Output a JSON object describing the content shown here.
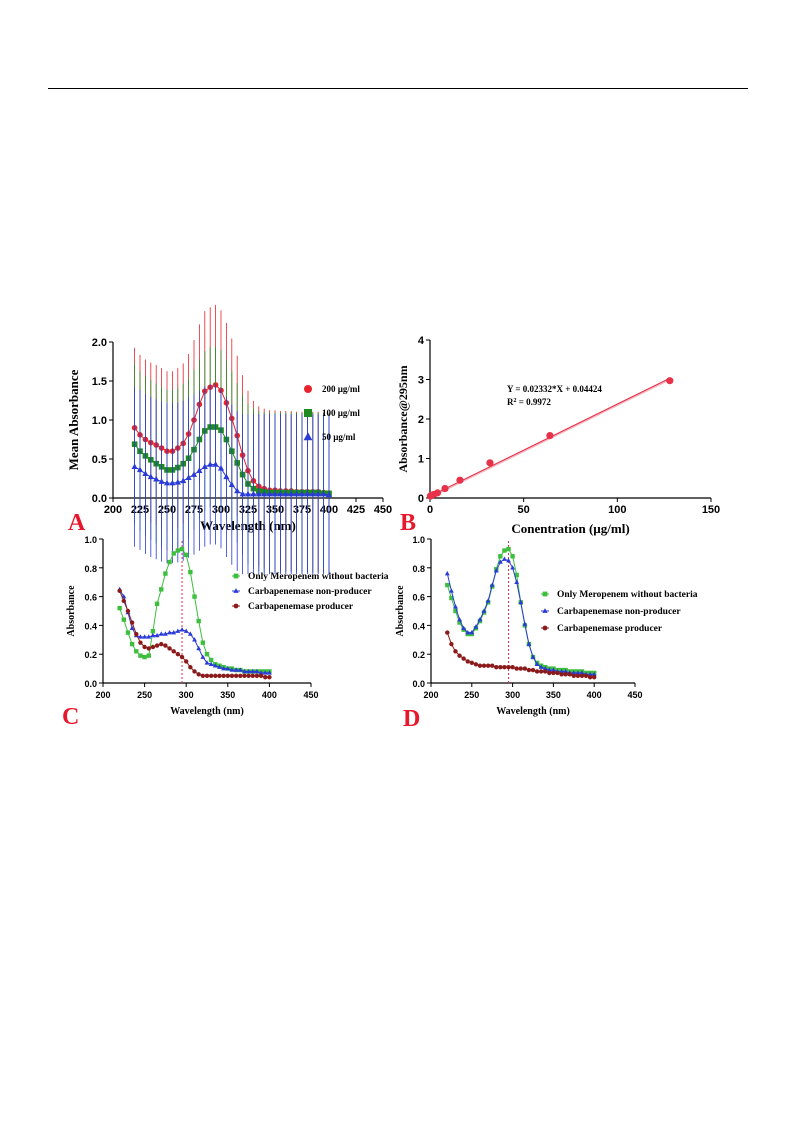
{
  "chart_data": [
    {
      "panel": "A",
      "type": "line",
      "xlabel": "Wavelength (nm)",
      "ylabel": "Mean Absorbance",
      "xlim": [
        200,
        450
      ],
      "ylim": [
        0,
        2.0
      ],
      "xticks": [
        "200",
        "225",
        "250",
        "275",
        "300",
        "325",
        "350",
        "375",
        "400",
        "425",
        "450"
      ],
      "yticks": [
        "0.0",
        "0.5",
        "1.0",
        "1.5",
        "2.0"
      ],
      "legend_position": "right",
      "error_bars": true,
      "series": [
        {
          "name": "200 µg/ml",
          "color": "#e8232b",
          "marker": "circle",
          "x": [
            220,
            225,
            230,
            235,
            240,
            245,
            250,
            255,
            260,
            265,
            270,
            275,
            280,
            285,
            290,
            295,
            300,
            305,
            310,
            315,
            320,
            325,
            330,
            335,
            340,
            345,
            350,
            355,
            360,
            365,
            370,
            375,
            380,
            385,
            390,
            395,
            400
          ],
          "y": [
            0.9,
            0.81,
            0.75,
            0.71,
            0.68,
            0.64,
            0.6,
            0.6,
            0.64,
            0.7,
            0.82,
            1.0,
            1.2,
            1.37,
            1.42,
            1.45,
            1.38,
            1.22,
            1.02,
            0.8,
            0.55,
            0.35,
            0.22,
            0.15,
            0.12,
            0.1,
            0.1,
            0.09,
            0.09,
            0.09,
            0.08,
            0.08,
            0.08,
            0.08,
            0.08,
            0.07,
            0.06
          ]
        },
        {
          "name": "100 µg/ml",
          "color": "#1f8a1f",
          "marker": "square",
          "x": [
            220,
            225,
            230,
            235,
            240,
            245,
            250,
            255,
            260,
            265,
            270,
            275,
            280,
            285,
            290,
            295,
            300,
            305,
            310,
            315,
            320,
            325,
            330,
            335,
            340,
            345,
            350,
            355,
            360,
            365,
            370,
            375,
            380,
            385,
            390,
            395,
            400
          ],
          "y": [
            0.69,
            0.6,
            0.54,
            0.49,
            0.44,
            0.4,
            0.36,
            0.36,
            0.39,
            0.44,
            0.51,
            0.62,
            0.75,
            0.86,
            0.91,
            0.91,
            0.87,
            0.75,
            0.6,
            0.45,
            0.3,
            0.18,
            0.12,
            0.09,
            0.08,
            0.07,
            0.07,
            0.07,
            0.07,
            0.07,
            0.07,
            0.07,
            0.07,
            0.07,
            0.07,
            0.06,
            0.06
          ]
        },
        {
          "name": "50 µg/ml",
          "color": "#2a3bd8",
          "marker": "triangle",
          "x": [
            220,
            225,
            230,
            235,
            240,
            245,
            250,
            255,
            260,
            265,
            270,
            275,
            280,
            285,
            290,
            295,
            300,
            305,
            310,
            315,
            320,
            325,
            330,
            335,
            340,
            345,
            350,
            355,
            360,
            365,
            370,
            375,
            380,
            385,
            390,
            395,
            400
          ],
          "y": [
            0.4,
            0.36,
            0.31,
            0.27,
            0.24,
            0.21,
            0.19,
            0.19,
            0.2,
            0.22,
            0.26,
            0.3,
            0.35,
            0.4,
            0.43,
            0.43,
            0.38,
            0.27,
            0.17,
            0.09,
            0.05,
            0.05,
            0.05,
            0.05,
            0.05,
            0.05,
            0.05,
            0.05,
            0.05,
            0.05,
            0.05,
            0.05,
            0.05,
            0.05,
            0.05,
            0.05,
            0.04
          ]
        }
      ]
    },
    {
      "panel": "B",
      "type": "scatter",
      "xlabel": "Conentration (µg/ml)",
      "ylabel": "Absorbance@295nm",
      "xlim": [
        0,
        150
      ],
      "ylim": [
        0,
        4
      ],
      "xticks": [
        "0",
        "50",
        "100",
        "150"
      ],
      "yticks": [
        "0",
        "1",
        "2",
        "3",
        "4"
      ],
      "equation": "Y = 0.02332*X + 0.04424",
      "r2_label": "R",
      "r2_sup": "2",
      "r2_value": " = 0.9972",
      "fit": {
        "slope": 0.02332,
        "intercept": 0.04424
      },
      "series": [
        {
          "color": "#e8324a",
          "x": [
            0.25,
            0.5,
            1,
            2,
            4,
            8,
            16,
            32,
            64,
            128
          ],
          "y": [
            0.05,
            0.06,
            0.07,
            0.09,
            0.13,
            0.24,
            0.45,
            0.89,
            1.58,
            2.97
          ]
        }
      ]
    },
    {
      "panel": "C",
      "type": "line",
      "xlabel": "Wavelength (nm)",
      "ylabel": "Absorbance",
      "xlim": [
        200,
        450
      ],
      "ylim": [
        0,
        1.0
      ],
      "xticks": [
        "200",
        "250",
        "300",
        "350",
        "400",
        "450"
      ],
      "yticks": [
        "0.0",
        "0.2",
        "0.4",
        "0.6",
        "0.8",
        "1.0"
      ],
      "vline": 295,
      "legend_position": "right",
      "series": [
        {
          "name": "Only Meropenem without bacteria",
          "color": "#3dbf3d",
          "marker": "square",
          "x": [
            220,
            225,
            230,
            235,
            240,
            245,
            250,
            255,
            260,
            265,
            270,
            275,
            280,
            285,
            290,
            295,
            300,
            305,
            310,
            315,
            320,
            325,
            330,
            335,
            340,
            345,
            350,
            355,
            360,
            365,
            370,
            375,
            380,
            385,
            390,
            395,
            400
          ],
          "y": [
            0.52,
            0.44,
            0.35,
            0.27,
            0.22,
            0.19,
            0.18,
            0.19,
            0.36,
            0.55,
            0.65,
            0.76,
            0.84,
            0.9,
            0.92,
            0.93,
            0.89,
            0.77,
            0.6,
            0.43,
            0.28,
            0.2,
            0.16,
            0.13,
            0.12,
            0.11,
            0.1,
            0.1,
            0.09,
            0.09,
            0.08,
            0.08,
            0.08,
            0.08,
            0.08,
            0.08,
            0.08
          ]
        },
        {
          "name": "Carbapenemase non-producer",
          "color": "#2a3bd8",
          "marker": "triangle",
          "x": [
            220,
            225,
            230,
            235,
            240,
            245,
            250,
            255,
            260,
            265,
            270,
            275,
            280,
            285,
            290,
            295,
            300,
            305,
            310,
            315,
            320,
            325,
            330,
            335,
            340,
            345,
            350,
            355,
            360,
            365,
            370,
            375,
            380,
            385,
            390,
            395,
            400
          ],
          "y": [
            0.65,
            0.6,
            0.49,
            0.38,
            0.33,
            0.32,
            0.32,
            0.32,
            0.33,
            0.33,
            0.34,
            0.34,
            0.35,
            0.35,
            0.36,
            0.37,
            0.36,
            0.34,
            0.3,
            0.24,
            0.18,
            0.14,
            0.13,
            0.12,
            0.11,
            0.1,
            0.1,
            0.09,
            0.09,
            0.09,
            0.08,
            0.08,
            0.08,
            0.08,
            0.07,
            0.07,
            0.07
          ]
        },
        {
          "name": "Carbapenemase producer",
          "color": "#8b1a1a",
          "marker": "circle",
          "x": [
            220,
            225,
            230,
            235,
            240,
            245,
            250,
            255,
            260,
            265,
            270,
            275,
            280,
            285,
            290,
            295,
            300,
            305,
            310,
            315,
            320,
            325,
            330,
            335,
            340,
            345,
            350,
            355,
            360,
            365,
            370,
            375,
            380,
            385,
            390,
            395,
            400
          ],
          "y": [
            0.64,
            0.57,
            0.5,
            0.42,
            0.34,
            0.28,
            0.25,
            0.24,
            0.25,
            0.26,
            0.27,
            0.26,
            0.24,
            0.22,
            0.2,
            0.18,
            0.15,
            0.11,
            0.08,
            0.06,
            0.05,
            0.05,
            0.05,
            0.05,
            0.05,
            0.05,
            0.05,
            0.05,
            0.05,
            0.05,
            0.05,
            0.05,
            0.05,
            0.05,
            0.05,
            0.04,
            0.04
          ]
        }
      ]
    },
    {
      "panel": "D",
      "type": "line",
      "xlabel": "Wavelength (nm)",
      "ylabel": "Absorbance",
      "xlim": [
        200,
        450
      ],
      "ylim": [
        0,
        1.0
      ],
      "xticks": [
        "200",
        "250",
        "300",
        "350",
        "400",
        "450"
      ],
      "yticks": [
        "0.0",
        "0.2",
        "0.4",
        "0.6",
        "0.8",
        "1.0"
      ],
      "vline": 295,
      "legend_position": "right",
      "series": [
        {
          "name": "Only Meropenem without bacteria",
          "color": "#3dbf3d",
          "marker": "square",
          "x": [
            220,
            225,
            230,
            235,
            240,
            245,
            250,
            255,
            260,
            265,
            270,
            275,
            280,
            285,
            290,
            295,
            300,
            305,
            310,
            315,
            320,
            325,
            330,
            335,
            340,
            345,
            350,
            355,
            360,
            365,
            370,
            375,
            380,
            385,
            390,
            395,
            400
          ],
          "y": [
            0.68,
            0.59,
            0.5,
            0.42,
            0.37,
            0.34,
            0.34,
            0.38,
            0.43,
            0.49,
            0.56,
            0.67,
            0.79,
            0.88,
            0.92,
            0.93,
            0.88,
            0.75,
            0.56,
            0.4,
            0.27,
            0.18,
            0.14,
            0.12,
            0.11,
            0.1,
            0.1,
            0.09,
            0.09,
            0.09,
            0.08,
            0.08,
            0.08,
            0.08,
            0.07,
            0.07,
            0.07
          ]
        },
        {
          "name": "Carbapenemase non-producer",
          "color": "#2a3bd8",
          "marker": "triangle",
          "x": [
            220,
            225,
            230,
            235,
            240,
            245,
            250,
            255,
            260,
            265,
            270,
            275,
            280,
            285,
            290,
            295,
            300,
            305,
            310,
            315,
            320,
            325,
            330,
            335,
            340,
            345,
            350,
            355,
            360,
            365,
            370,
            375,
            380,
            385,
            390,
            395,
            400
          ],
          "y": [
            0.76,
            0.64,
            0.53,
            0.44,
            0.38,
            0.35,
            0.35,
            0.39,
            0.44,
            0.5,
            0.57,
            0.68,
            0.78,
            0.84,
            0.86,
            0.85,
            0.8,
            0.7,
            0.56,
            0.41,
            0.27,
            0.18,
            0.13,
            0.11,
            0.1,
            0.09,
            0.09,
            0.08,
            0.08,
            0.08,
            0.07,
            0.07,
            0.07,
            0.07,
            0.06,
            0.06,
            0.06
          ]
        },
        {
          "name": "Carbapenemase producer",
          "color": "#8b1a1a",
          "marker": "circle",
          "x": [
            220,
            225,
            230,
            235,
            240,
            245,
            250,
            255,
            260,
            265,
            270,
            275,
            280,
            285,
            290,
            295,
            300,
            305,
            310,
            315,
            320,
            325,
            330,
            335,
            340,
            345,
            350,
            355,
            360,
            365,
            370,
            375,
            380,
            385,
            390,
            395,
            400
          ],
          "y": [
            0.35,
            0.27,
            0.22,
            0.19,
            0.17,
            0.15,
            0.14,
            0.13,
            0.12,
            0.12,
            0.12,
            0.12,
            0.11,
            0.11,
            0.11,
            0.11,
            0.11,
            0.1,
            0.1,
            0.1,
            0.09,
            0.09,
            0.08,
            0.08,
            0.08,
            0.07,
            0.07,
            0.07,
            0.06,
            0.06,
            0.06,
            0.05,
            0.05,
            0.05,
            0.05,
            0.04,
            0.04
          ]
        }
      ]
    }
  ]
}
